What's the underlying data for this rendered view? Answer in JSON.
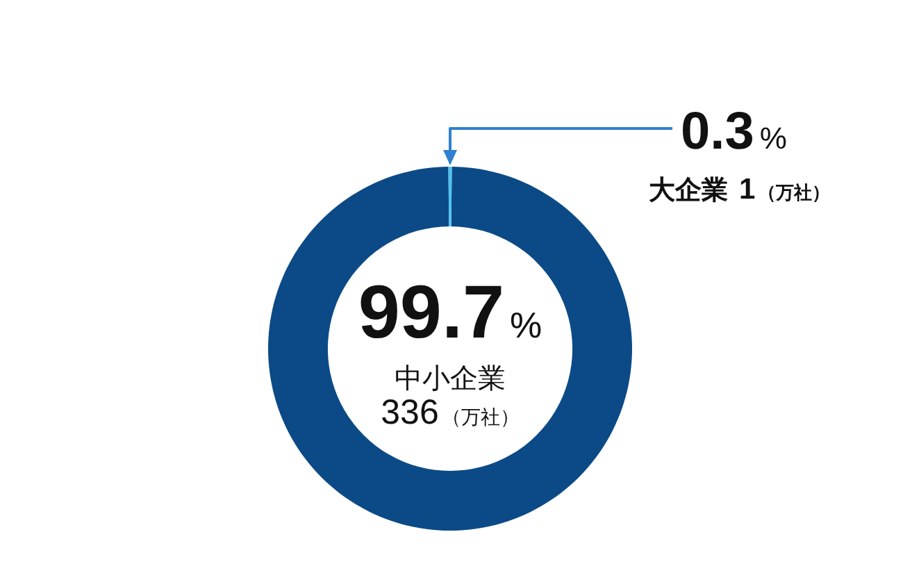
{
  "chart_data": {
    "type": "donut",
    "categories": [
      "中小企業",
      "大企業"
    ],
    "values": [
      99.7,
      0.3
    ],
    "colors": [
      "#0b4a86",
      "#4fc3ef"
    ],
    "value_labels": [
      "99.7%",
      "0.3%"
    ],
    "annotations": [
      "336（万社）",
      "1（万社）"
    ]
  }
}
